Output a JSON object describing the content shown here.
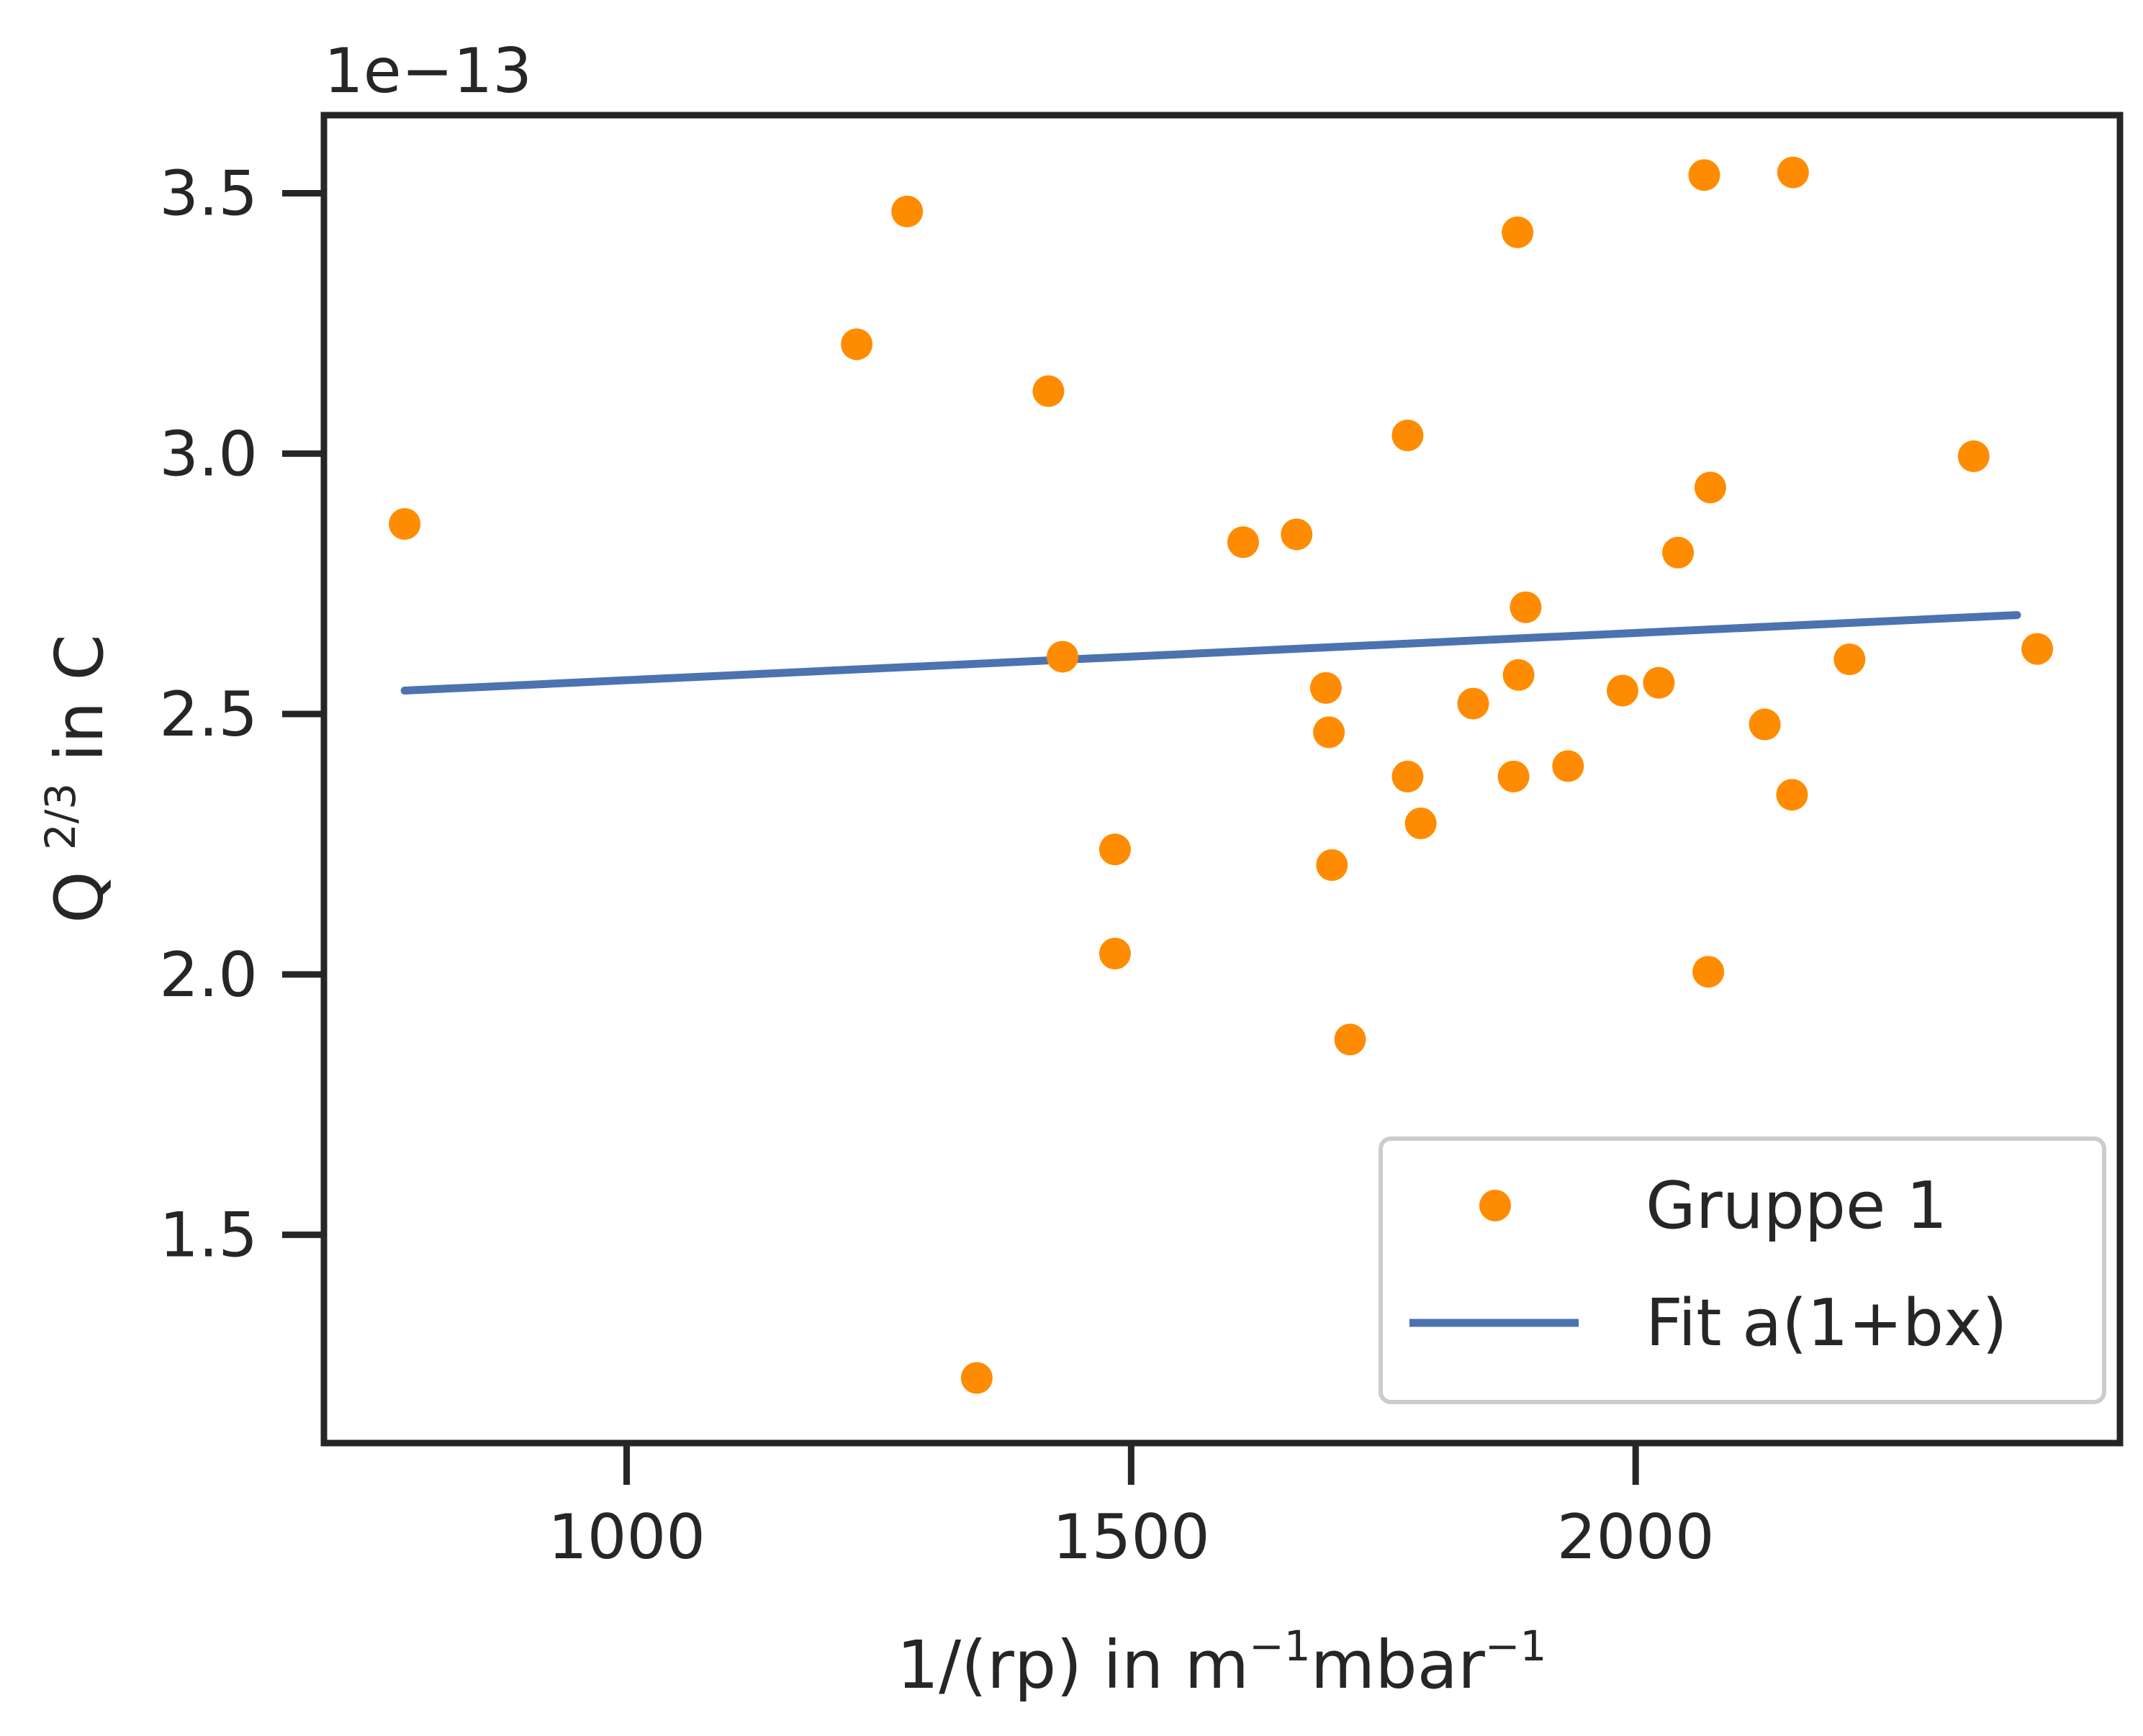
{
  "chart_data": {
    "type": "scatter",
    "xlabel": {
      "parts": [
        {
          "text": "1/(rp) in m",
          "sup": false
        },
        {
          "text": "−1",
          "sup": true
        },
        {
          "text": "mbar",
          "sup": false
        },
        {
          "text": "−1",
          "sup": true
        }
      ]
    },
    "ylabel": {
      "parts": [
        {
          "text": "Q ",
          "sup": false
        },
        {
          "text": "2/3",
          "sup": true
        },
        {
          "text": " in C",
          "sup": false
        }
      ]
    },
    "offset_text": "1e−13",
    "xlim": [
      700,
      2480
    ],
    "ylim": [
      1.1,
      3.65
    ],
    "y_scale_factor": 1e-13,
    "xticks": [
      1000,
      1500,
      2000
    ],
    "xtick_labels": [
      "1000",
      "1500",
      "2000"
    ],
    "yticks": [
      1.5,
      2.0,
      2.5,
      3.0,
      3.5
    ],
    "ytick_labels": [
      "1.5",
      "2.0",
      "2.5",
      "3.0",
      "3.5"
    ],
    "grid": false,
    "legend_position": "lower right",
    "series": [
      {
        "name": "Gruppe 1",
        "kind": "scatter",
        "color": "#ff8c00",
        "points": [
          {
            "x": 780,
            "y": 2.865
          },
          {
            "x": 1228,
            "y": 3.21
          },
          {
            "x": 1278,
            "y": 3.465
          },
          {
            "x": 1347,
            "y": 1.225
          },
          {
            "x": 1418,
            "y": 3.12
          },
          {
            "x": 1432,
            "y": 2.61
          },
          {
            "x": 1484,
            "y": 2.24
          },
          {
            "x": 1484,
            "y": 2.04
          },
          {
            "x": 1611,
            "y": 2.83
          },
          {
            "x": 1664,
            "y": 2.845
          },
          {
            "x": 1693,
            "y": 2.55
          },
          {
            "x": 1696,
            "y": 2.465
          },
          {
            "x": 1699,
            "y": 2.21
          },
          {
            "x": 1717,
            "y": 1.875
          },
          {
            "x": 1774,
            "y": 3.035
          },
          {
            "x": 1774,
            "y": 2.38
          },
          {
            "x": 1787,
            "y": 2.29
          },
          {
            "x": 1839,
            "y": 2.52
          },
          {
            "x": 1879,
            "y": 2.38
          },
          {
            "x": 1883,
            "y": 3.425
          },
          {
            "x": 1884,
            "y": 2.575
          },
          {
            "x": 1891,
            "y": 2.705
          },
          {
            "x": 1933,
            "y": 2.4
          },
          {
            "x": 1987,
            "y": 2.545
          },
          {
            "x": 2023,
            "y": 2.56
          },
          {
            "x": 2042,
            "y": 2.81
          },
          {
            "x": 2068,
            "y": 3.535
          },
          {
            "x": 2072,
            "y": 2.005
          },
          {
            "x": 2074,
            "y": 2.935
          },
          {
            "x": 2128,
            "y": 2.48
          },
          {
            "x": 2156,
            "y": 3.54
          },
          {
            "x": 2155,
            "y": 2.345
          },
          {
            "x": 2212,
            "y": 2.605
          },
          {
            "x": 2335,
            "y": 2.995
          },
          {
            "x": 2398,
            "y": 2.625
          }
        ]
      },
      {
        "name": "Fit a(1+bx)",
        "kind": "line",
        "color": "#4c72b0",
        "x": [
          780,
          2378
        ],
        "values": [
          2.545,
          2.69
        ]
      }
    ]
  }
}
